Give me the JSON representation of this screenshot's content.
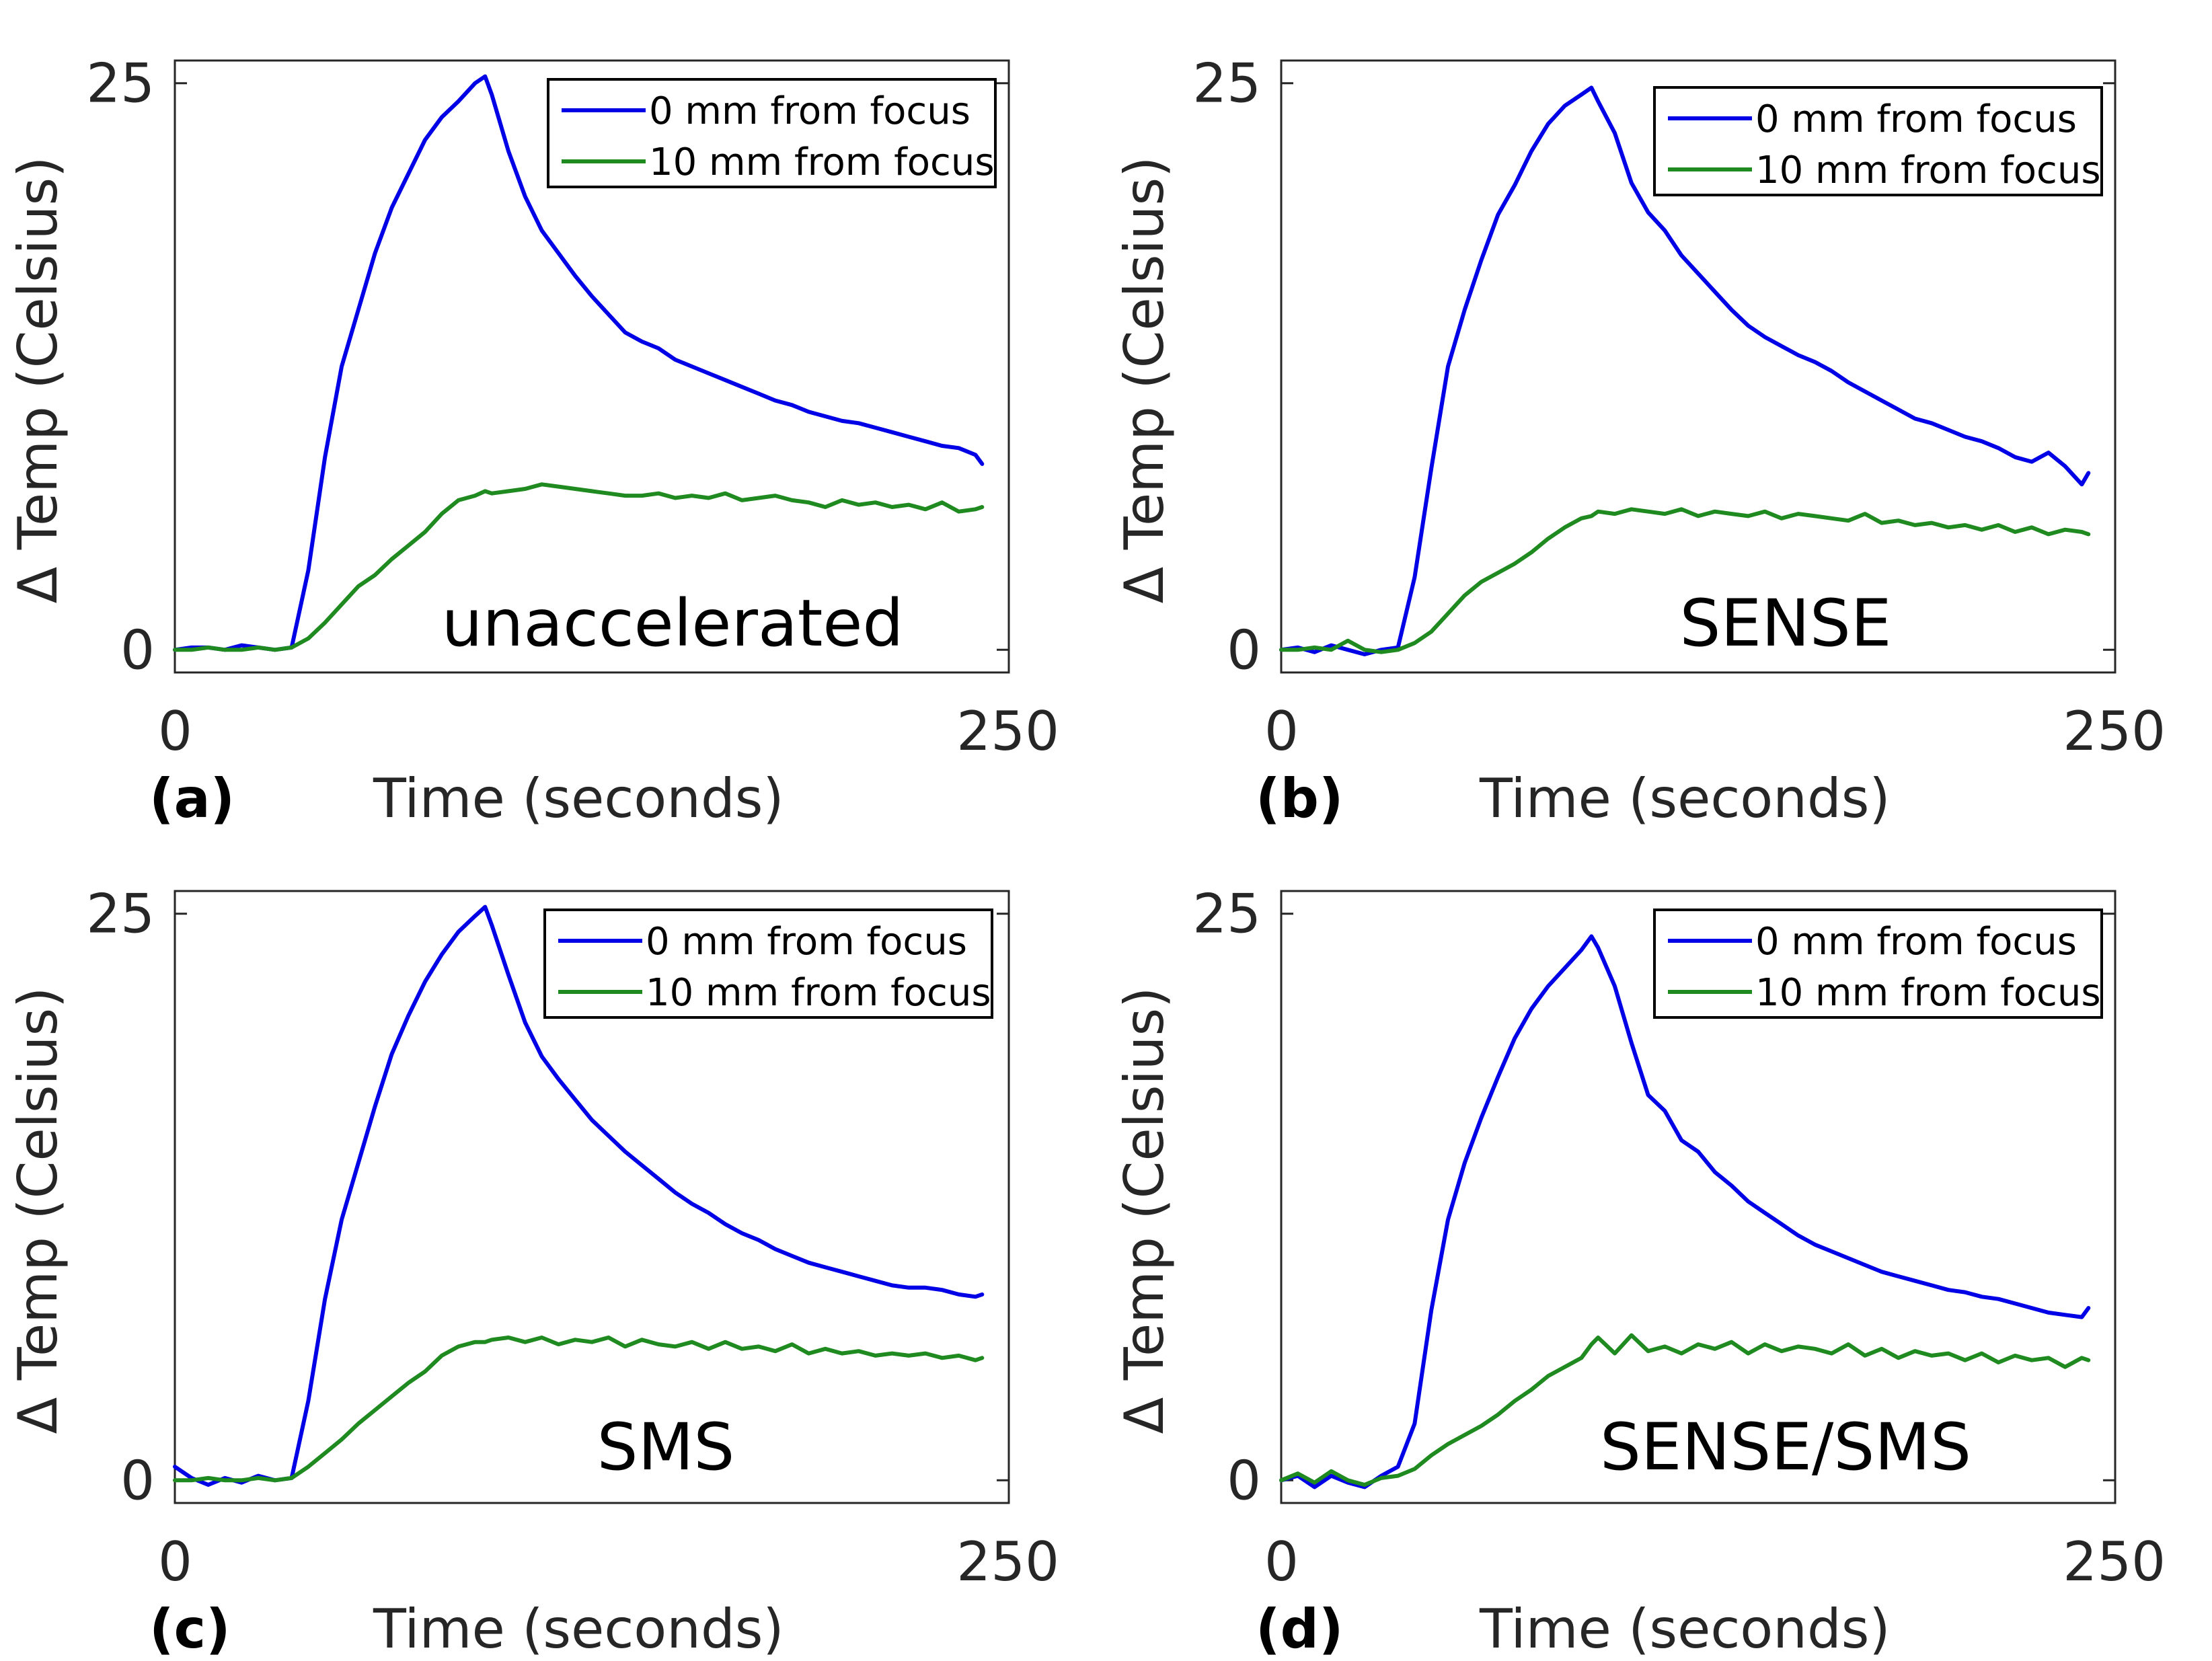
{
  "figure": {
    "colors": {
      "series_0mm": "#0000e6",
      "series_10mm": "#1f8a1f",
      "axis": "#262626"
    }
  },
  "chart_data": [
    {
      "type": "line",
      "panel": "(a)",
      "annotation": "unaccelerated",
      "xlabel": "Time (seconds)",
      "ylabel": "Δ Temp (Celsius)",
      "xlim": [
        0,
        250
      ],
      "ylim": [
        -1,
        26
      ],
      "xticks": [
        "0",
        "250"
      ],
      "yticks": [
        "0",
        "25"
      ],
      "legend": {
        "position": "top-right",
        "entries": [
          "0 mm from focus",
          "10 mm from focus"
        ]
      },
      "x": [
        0,
        5,
        10,
        15,
        20,
        25,
        30,
        35,
        40,
        45,
        50,
        55,
        60,
        65,
        70,
        75,
        80,
        85,
        90,
        93,
        95,
        100,
        105,
        110,
        115,
        120,
        125,
        130,
        135,
        140,
        145,
        150,
        155,
        160,
        165,
        170,
        175,
        180,
        185,
        190,
        195,
        200,
        205,
        210,
        215,
        220,
        225,
        230,
        235,
        240,
        242
      ],
      "series": [
        {
          "name": "0 mm from focus",
          "values": [
            0,
            0.1,
            0.1,
            0,
            0.2,
            0.1,
            0,
            0.1,
            3.5,
            8.5,
            12.5,
            15,
            17.5,
            19.5,
            21,
            22.5,
            23.5,
            24.2,
            25,
            25.3,
            24.5,
            22,
            20,
            18.5,
            17.5,
            16.5,
            15.6,
            14.8,
            14,
            13.6,
            13.3,
            12.8,
            12.5,
            12.2,
            11.9,
            11.6,
            11.3,
            11,
            10.8,
            10.5,
            10.3,
            10.1,
            10,
            9.8,
            9.6,
            9.4,
            9.2,
            9,
            8.9,
            8.6,
            8.2
          ]
        },
        {
          "name": "10 mm from focus",
          "values": [
            0,
            0,
            0.1,
            0,
            0,
            0.1,
            0,
            0.1,
            0.5,
            1.2,
            2,
            2.8,
            3.3,
            4,
            4.6,
            5.2,
            6,
            6.6,
            6.8,
            7,
            6.9,
            7,
            7.1,
            7.3,
            7.2,
            7.1,
            7,
            6.9,
            6.8,
            6.8,
            6.9,
            6.7,
            6.8,
            6.7,
            6.9,
            6.6,
            6.7,
            6.8,
            6.6,
            6.5,
            6.3,
            6.6,
            6.4,
            6.5,
            6.3,
            6.4,
            6.2,
            6.5,
            6.1,
            6.2,
            6.3
          ]
        }
      ]
    },
    {
      "type": "line",
      "panel": "(b)",
      "annotation": "SENSE",
      "xlabel": "Time (seconds)",
      "ylabel": "Δ Temp (Celsius)",
      "xlim": [
        0,
        250
      ],
      "ylim": [
        -1,
        26
      ],
      "xticks": [
        "0",
        "250"
      ],
      "yticks": [
        "0",
        "25"
      ],
      "legend": {
        "position": "top-right",
        "entries": [
          "0 mm from focus",
          "10 mm from focus"
        ]
      },
      "x": [
        0,
        5,
        10,
        15,
        20,
        25,
        30,
        35,
        40,
        45,
        50,
        55,
        60,
        65,
        70,
        75,
        80,
        85,
        90,
        93,
        95,
        100,
        105,
        110,
        115,
        120,
        125,
        130,
        135,
        140,
        145,
        150,
        155,
        160,
        165,
        170,
        175,
        180,
        185,
        190,
        195,
        200,
        205,
        210,
        215,
        220,
        225,
        230,
        235,
        240,
        242
      ],
      "series": [
        {
          "name": "0 mm from focus",
          "values": [
            0,
            0.1,
            -0.1,
            0.2,
            0,
            -0.2,
            0,
            0.1,
            3.2,
            8,
            12.5,
            15,
            17.2,
            19.2,
            20.5,
            22,
            23.2,
            24,
            24.5,
            24.8,
            24.2,
            22.8,
            20.6,
            19.3,
            18.5,
            17.4,
            16.6,
            15.8,
            15,
            14.3,
            13.8,
            13.4,
            13,
            12.7,
            12.3,
            11.8,
            11.4,
            11,
            10.6,
            10.2,
            10,
            9.7,
            9.4,
            9.2,
            8.9,
            8.5,
            8.3,
            8.7,
            8.1,
            7.3,
            7.8
          ]
        },
        {
          "name": "10 mm from focus",
          "values": [
            0,
            0,
            0.1,
            0,
            0.4,
            0,
            -0.1,
            0,
            0.3,
            0.8,
            1.6,
            2.4,
            3,
            3.4,
            3.8,
            4.3,
            4.9,
            5.4,
            5.8,
            5.9,
            6.1,
            6,
            6.2,
            6.1,
            6,
            6.2,
            5.9,
            6.1,
            6,
            5.9,
            6.1,
            5.8,
            6,
            5.9,
            5.8,
            5.7,
            6,
            5.6,
            5.7,
            5.5,
            5.6,
            5.4,
            5.5,
            5.3,
            5.5,
            5.2,
            5.4,
            5.1,
            5.3,
            5.2,
            5.1
          ]
        }
      ]
    },
    {
      "type": "line",
      "panel": "(c)",
      "annotation": "SMS",
      "xlabel": "Time (seconds)",
      "ylabel": "Δ Temp (Celsius)",
      "xlim": [
        0,
        250
      ],
      "ylim": [
        -1,
        26
      ],
      "xticks": [
        "0",
        "250"
      ],
      "yticks": [
        "0",
        "25"
      ],
      "legend": {
        "position": "top-right",
        "entries": [
          "0 mm from focus",
          "10 mm from focus"
        ]
      },
      "x": [
        0,
        5,
        10,
        15,
        20,
        25,
        30,
        35,
        40,
        45,
        50,
        55,
        60,
        65,
        70,
        75,
        80,
        85,
        90,
        93,
        95,
        100,
        105,
        110,
        115,
        120,
        125,
        130,
        135,
        140,
        145,
        150,
        155,
        160,
        165,
        170,
        175,
        180,
        185,
        190,
        195,
        200,
        205,
        210,
        215,
        220,
        225,
        230,
        235,
        240,
        242
      ],
      "series": [
        {
          "name": "0 mm from focus",
          "values": [
            0.6,
            0.1,
            -0.2,
            0.1,
            -0.1,
            0.2,
            0,
            0.1,
            3.5,
            8,
            11.5,
            14,
            16.5,
            18.8,
            20.5,
            22,
            23.2,
            24.2,
            24.9,
            25.3,
            24.5,
            22.3,
            20.2,
            18.7,
            17.7,
            16.8,
            15.9,
            15.2,
            14.5,
            13.9,
            13.3,
            12.7,
            12.2,
            11.8,
            11.3,
            10.9,
            10.6,
            10.2,
            9.9,
            9.6,
            9.4,
            9.2,
            9,
            8.8,
            8.6,
            8.5,
            8.5,
            8.4,
            8.2,
            8.1,
            8.2
          ]
        },
        {
          "name": "10 mm from focus",
          "values": [
            0,
            0,
            0.1,
            0,
            0,
            0.1,
            0,
            0.1,
            0.6,
            1.2,
            1.8,
            2.5,
            3.1,
            3.7,
            4.3,
            4.8,
            5.5,
            5.9,
            6.1,
            6.1,
            6.2,
            6.3,
            6.1,
            6.3,
            6,
            6.2,
            6.1,
            6.3,
            5.9,
            6.2,
            6,
            5.9,
            6.1,
            5.8,
            6.1,
            5.8,
            5.9,
            5.7,
            6,
            5.6,
            5.8,
            5.6,
            5.7,
            5.5,
            5.6,
            5.5,
            5.6,
            5.4,
            5.5,
            5.3,
            5.4
          ]
        }
      ]
    },
    {
      "type": "line",
      "panel": "(d)",
      "annotation": "SENSE/SMS",
      "xlabel": "Time (seconds)",
      "ylabel": "Δ Temp (Celsius)",
      "xlim": [
        0,
        250
      ],
      "ylim": [
        -1,
        26
      ],
      "xticks": [
        "0",
        "250"
      ],
      "yticks": [
        "0",
        "25"
      ],
      "legend": {
        "position": "top-right",
        "entries": [
          "0 mm from focus",
          "10 mm from focus"
        ]
      },
      "x": [
        0,
        5,
        10,
        15,
        20,
        25,
        30,
        35,
        40,
        45,
        50,
        55,
        60,
        65,
        70,
        75,
        80,
        85,
        90,
        93,
        95,
        100,
        105,
        110,
        115,
        120,
        125,
        130,
        135,
        140,
        145,
        150,
        155,
        160,
        165,
        170,
        175,
        180,
        185,
        190,
        195,
        200,
        205,
        210,
        215,
        220,
        225,
        230,
        235,
        240,
        242
      ],
      "series": [
        {
          "name": "0 mm from focus",
          "values": [
            0,
            0.2,
            -0.3,
            0.2,
            -0.1,
            -0.3,
            0.2,
            0.6,
            2.5,
            7.5,
            11.5,
            14,
            16,
            17.8,
            19.5,
            20.8,
            21.8,
            22.6,
            23.4,
            24,
            23.5,
            21.8,
            19.3,
            17,
            16.3,
            15,
            14.5,
            13.6,
            13,
            12.3,
            11.8,
            11.3,
            10.8,
            10.4,
            10.1,
            9.8,
            9.5,
            9.2,
            9,
            8.8,
            8.6,
            8.4,
            8.3,
            8.1,
            8,
            7.8,
            7.6,
            7.4,
            7.3,
            7.2,
            7.6
          ]
        },
        {
          "name": "10 mm from focus",
          "values": [
            0,
            0.3,
            -0.1,
            0.4,
            0,
            -0.2,
            0.1,
            0.2,
            0.5,
            1.1,
            1.6,
            2,
            2.4,
            2.9,
            3.5,
            4,
            4.6,
            5,
            5.4,
            6,
            6.3,
            5.6,
            6.4,
            5.7,
            5.9,
            5.6,
            6,
            5.8,
            6.1,
            5.6,
            6,
            5.7,
            5.9,
            5.8,
            5.6,
            6,
            5.5,
            5.8,
            5.4,
            5.7,
            5.5,
            5.6,
            5.3,
            5.6,
            5.2,
            5.5,
            5.3,
            5.4,
            5,
            5.4,
            5.3
          ]
        }
      ]
    }
  ]
}
